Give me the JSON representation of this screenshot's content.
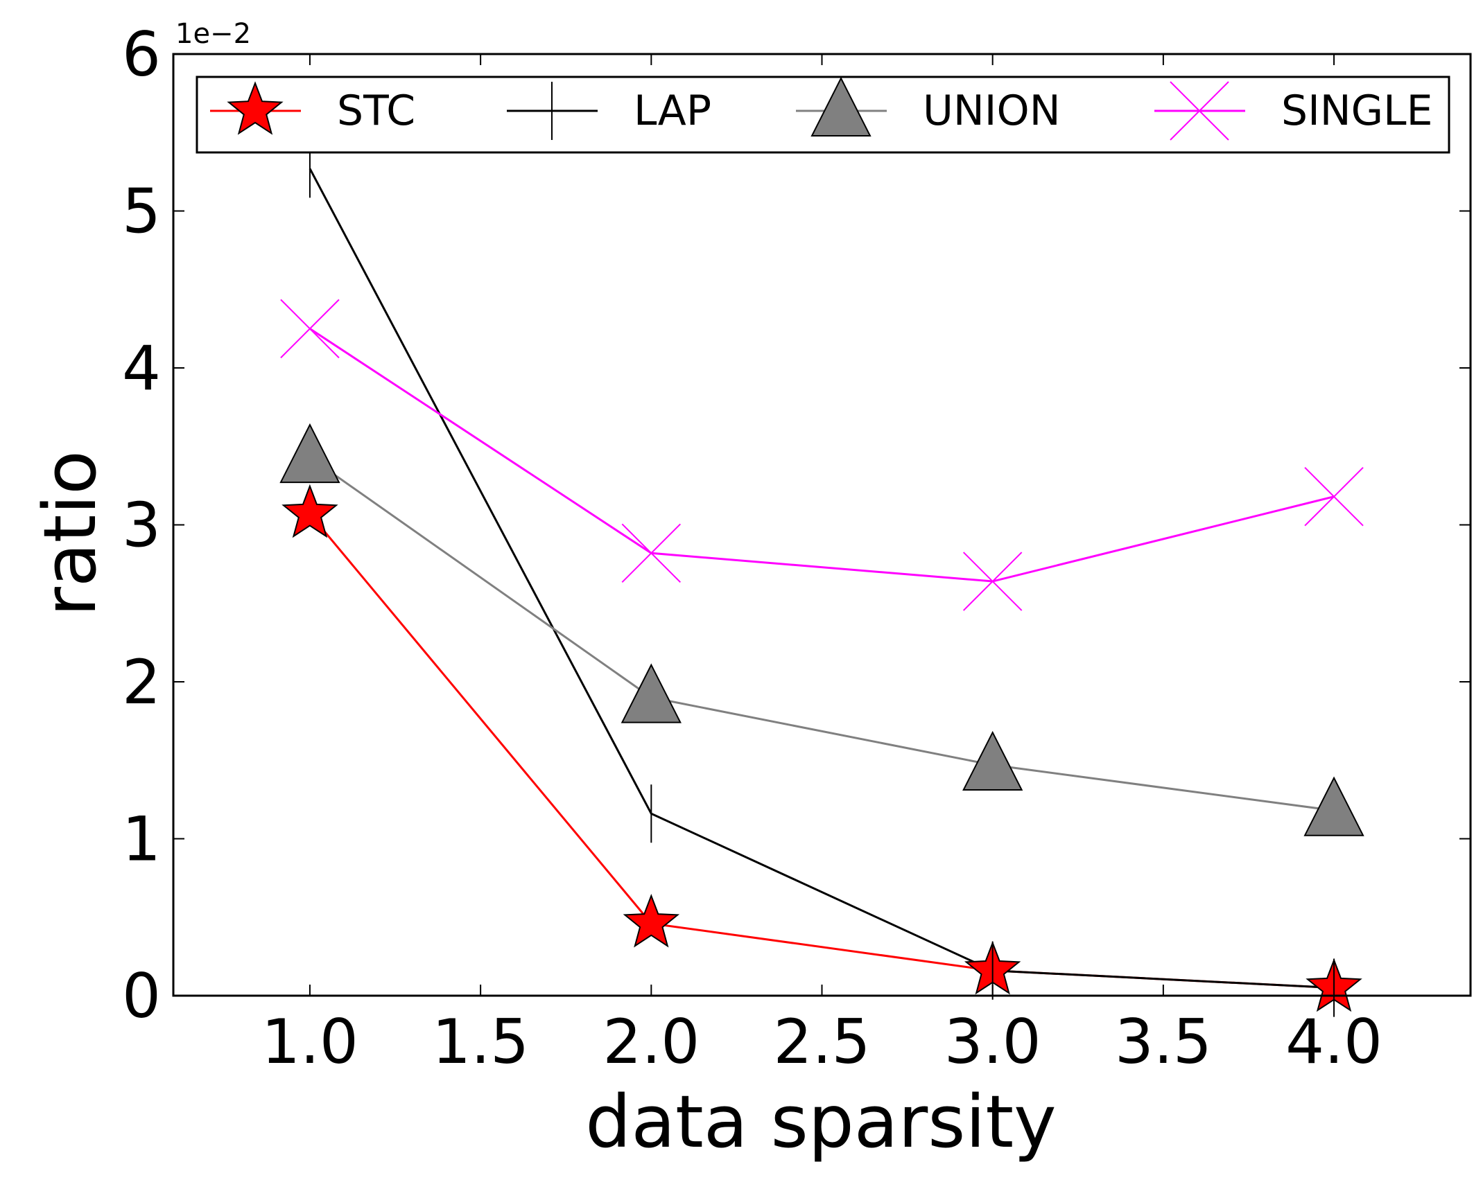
{
  "chart_data": {
    "type": "line",
    "xlabel": "data sparsity",
    "ylabel": "ratio",
    "scale_label": "1e−2",
    "xlim": [
      0.6,
      4.4
    ],
    "ylim": [
      0,
      6
    ],
    "x_ticks": [
      1.0,
      1.5,
      2.0,
      2.5,
      3.0,
      3.5,
      4.0
    ],
    "x_tick_labels": [
      "1.0",
      "1.5",
      "2.0",
      "2.5",
      "3.0",
      "3.5",
      "4.0"
    ],
    "y_ticks": [
      0,
      1,
      2,
      3,
      4,
      5,
      6
    ],
    "y_tick_labels": [
      "0",
      "1",
      "2",
      "3",
      "4",
      "5",
      "6"
    ],
    "x": [
      1.0,
      2.0,
      3.0,
      4.0
    ],
    "legend_position": "top",
    "series": [
      {
        "name": "STC",
        "values": [
          3.07,
          0.46,
          0.16,
          0.05
        ],
        "color": "#ff0000",
        "marker": "star"
      },
      {
        "name": "LAP",
        "values": [
          5.27,
          1.16,
          0.16,
          0.05
        ],
        "color": "#000000",
        "marker": "vline"
      },
      {
        "name": "UNION",
        "values": [
          3.43,
          1.9,
          1.47,
          1.18
        ],
        "color": "#808080",
        "marker": "triangle"
      },
      {
        "name": "SINGLE",
        "values": [
          4.25,
          2.82,
          2.64,
          3.18
        ],
        "color": "#ff00ff",
        "marker": "x"
      }
    ]
  }
}
